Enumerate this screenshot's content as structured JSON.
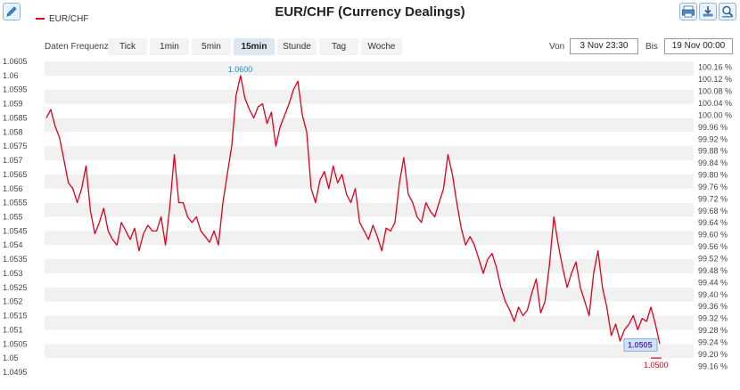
{
  "header": {
    "title": "EUR/CHF (Currency Dealings)",
    "legend_label": "EUR/CHF"
  },
  "controls": {
    "frequency_label": "Daten Frequenz",
    "frequencies": [
      "Tick",
      "1min",
      "5min",
      "15min",
      "Stunde",
      "Tag",
      "Woche"
    ],
    "selected_frequency": "15min",
    "from_label": "Von",
    "from_value": "3 Nov 23:30",
    "to_label": "Bis",
    "to_value": "19 Nov 00:00"
  },
  "toolbar": {
    "icons": [
      "edit-icon",
      "print-icon",
      "download-icon",
      "zoom-icon"
    ]
  },
  "colors": {
    "series": "#e0001a",
    "max_label": "#1a8fd6",
    "band": "#f1f1f1"
  },
  "chart_data": {
    "type": "line",
    "series": [
      {
        "name": "EUR/CHF",
        "values": [
          1.0585,
          1.0588,
          1.0582,
          1.0578,
          1.057,
          1.0562,
          1.056,
          1.0555,
          1.056,
          1.0568,
          1.0552,
          1.0544,
          1.0548,
          1.0553,
          1.0545,
          1.0542,
          1.054,
          1.0548,
          1.0545,
          1.0542,
          1.0546,
          1.0538,
          1.0544,
          1.0547,
          1.0545,
          1.0545,
          1.055,
          1.054,
          1.0554,
          1.0572,
          1.0555,
          1.0555,
          1.055,
          1.0548,
          1.055,
          1.0545,
          1.0543,
          1.0541,
          1.0545,
          1.054,
          1.0555,
          1.0565,
          1.0575,
          1.0593,
          1.06,
          1.0592,
          1.0588,
          1.0585,
          1.0589,
          1.059,
          1.0583,
          1.0587,
          1.0575,
          1.0582,
          1.0586,
          1.059,
          1.0595,
          1.0598,
          1.0586,
          1.058,
          1.056,
          1.0555,
          1.0563,
          1.0566,
          1.056,
          1.0568,
          1.0562,
          1.0565,
          1.0558,
          1.0555,
          1.056,
          1.0548,
          1.0545,
          1.0542,
          1.0547,
          1.0543,
          1.0538,
          1.0546,
          1.0545,
          1.0548,
          1.0562,
          1.0571,
          1.0558,
          1.0555,
          1.055,
          1.0548,
          1.0555,
          1.0552,
          1.055,
          1.0555,
          1.056,
          1.0572,
          1.0565,
          1.0555,
          1.0546,
          1.054,
          1.0543,
          1.054,
          1.0535,
          1.053,
          1.0535,
          1.0537,
          1.0532,
          1.0525,
          1.052,
          1.0517,
          1.0513,
          1.0518,
          1.0515,
          1.0517,
          1.0523,
          1.0528,
          1.0516,
          1.052,
          1.0533,
          1.055,
          1.054,
          1.0532,
          1.0525,
          1.053,
          1.0534,
          1.0525,
          1.052,
          1.0515,
          1.053,
          1.0538,
          1.0525,
          1.0518,
          1.0508,
          1.0512,
          1.0506,
          1.051,
          1.0512,
          1.0515,
          1.051,
          1.0514,
          1.0513,
          1.0518,
          1.0512,
          1.0505
        ]
      }
    ],
    "x_anchor_values": [
      1.0585,
      1.0562,
      1.0545,
      1.0548,
      1.0541,
      1.0555,
      1.055,
      1.0542,
      1.0541,
      1.0555,
      1.06,
      1.0585,
      1.058,
      1.0598,
      1.0555,
      1.0566,
      1.0548,
      1.0537,
      1.0552,
      1.0572,
      1.0545,
      1.0555,
      1.0571,
      1.055,
      1.054,
      1.0535,
      1.052,
      1.0513,
      1.0527,
      1.0517,
      1.0549,
      1.053,
      1.0534,
      1.052,
      1.0538,
      1.0508,
      1.0506,
      1.0516,
      1.0505
    ],
    "min": 1.05,
    "max": 1.06,
    "max_label": "1.0600",
    "min_label": "1.0500",
    "last_label": "1.0505",
    "ylim": [
      1.0495,
      1.0605
    ],
    "yticks": [
      "1.0605",
      "1.06",
      "1.0595",
      "1.059",
      "1.0585",
      "1.058",
      "1.0575",
      "1.057",
      "1.0565",
      "1.056",
      "1.0555",
      "1.055",
      "1.0545",
      "1.054",
      "1.0535",
      "1.053",
      "1.0525",
      "1.052",
      "1.0515",
      "1.051",
      "1.0505",
      "1.05",
      "1.0495"
    ],
    "y2ticks": [
      "100.16 %",
      "100.12 %",
      "100.08 %",
      "100.04 %",
      "100.00 %",
      "99.96 %",
      "99.92 %",
      "99.88 %",
      "99.84 %",
      "99.80 %",
      "99.76 %",
      "99.72 %",
      "99.68 %",
      "99.64 %",
      "99.60 %",
      "99.56 %",
      "99.52 %",
      "99.48 %",
      "99.44 %",
      "99.40 %",
      "99.36 %",
      "99.32 %",
      "99.28 %",
      "99.24 %",
      "99.20 %",
      "99.16 %"
    ],
    "y2lim": [
      99.14,
      100.18
    ],
    "grid": "alternating horizontal bands",
    "legend": "top-left"
  }
}
